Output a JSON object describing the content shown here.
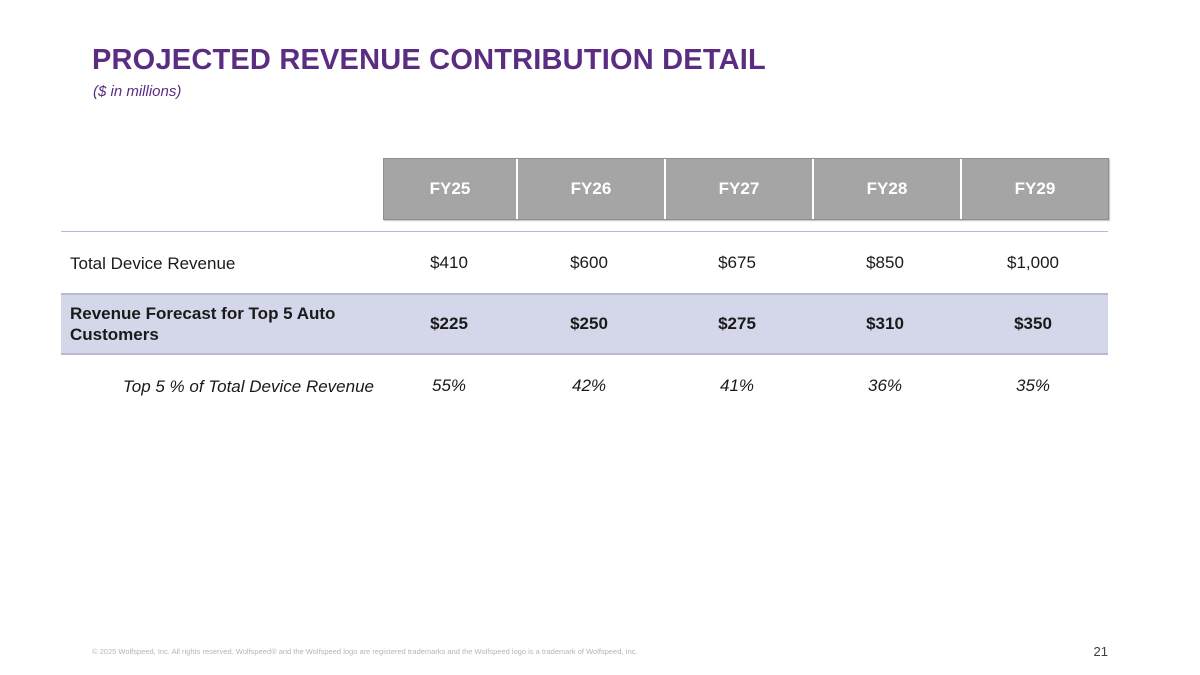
{
  "header": {
    "title": "PROJECTED REVENUE CONTRIBUTION DETAIL",
    "subtitle": "($ in millions)"
  },
  "table": {
    "columns": [
      "FY25",
      "FY26",
      "FY27",
      "FY28",
      "FY29"
    ],
    "rows": [
      {
        "label": "Total Device Revenue",
        "values": [
          "$410",
          "$600",
          "$675",
          "$850",
          "$1,000"
        ]
      },
      {
        "label": "Revenue Forecast for Top 5 Auto Customers",
        "values": [
          "$225",
          "$250",
          "$275",
          "$310",
          "$350"
        ]
      },
      {
        "label": "Top 5 % of Total Device Revenue",
        "values": [
          "55%",
          "42%",
          "41%",
          "36%",
          "35%"
        ]
      }
    ]
  },
  "footer": {
    "note": "© 2025 Wolfspeed, Inc. All rights reserved. Wolfspeed® and the Wolfspeed logo are registered trademarks and the Wolfspeed logo is a trademark of Wolfspeed, Inc.",
    "page_number": "21"
  },
  "colors": {
    "title": "#5a2d82",
    "header_fill": "#a5a5a5",
    "highlight_row": "#d4d6ea",
    "rule": "#b7b9d6"
  }
}
